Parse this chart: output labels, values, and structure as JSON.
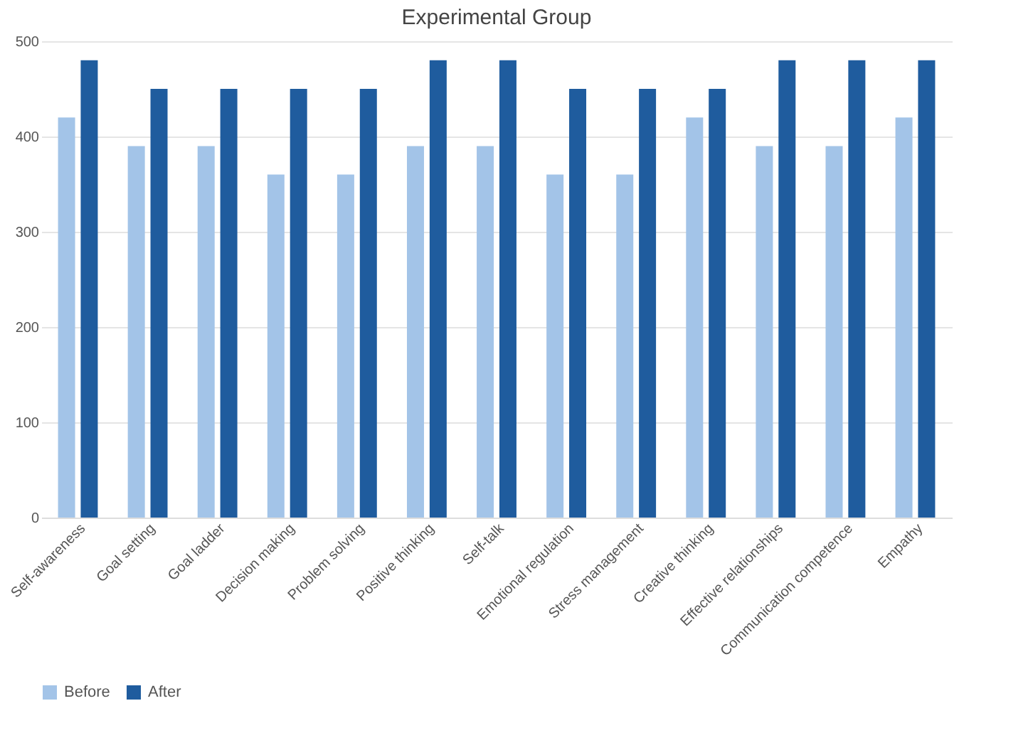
{
  "chart_data": {
    "type": "bar",
    "title": "Experimental Group",
    "categories": [
      "Self-awareness",
      "Goal setting",
      "Goal ladder",
      "Decision making",
      "Problem solving",
      "Positive thinking",
      "Self-talk",
      "Emotional regulation",
      "Stress management",
      "Creative thinking",
      "Effective relationships",
      "Communication competence",
      "Empathy"
    ],
    "series": [
      {
        "name": "Before",
        "color": "#a3c4e8",
        "values": [
          420,
          390,
          390,
          360,
          360,
          390,
          390,
          360,
          360,
          420,
          390,
          390,
          420
        ]
      },
      {
        "name": "After",
        "color": "#1f5c9e",
        "values": [
          480,
          450,
          450,
          450,
          450,
          480,
          480,
          450,
          450,
          450,
          480,
          480,
          480
        ]
      }
    ],
    "ylim": [
      0,
      500
    ],
    "yticks": [
      0,
      100,
      200,
      300,
      400,
      500
    ],
    "grid": "y",
    "legend": "bottom"
  }
}
